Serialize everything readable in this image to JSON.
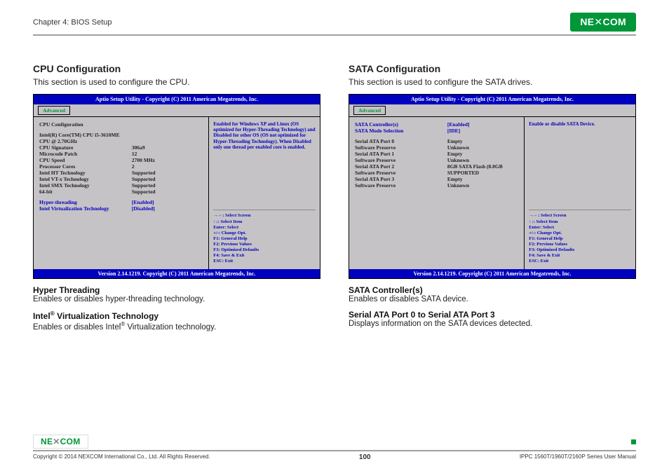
{
  "header": {
    "chapter": "Chapter 4: BIOS Setup",
    "logo": "NE COM"
  },
  "left": {
    "heading": "CPU Configuration",
    "sub": "This section is used to configure the CPU.",
    "bios": {
      "title": "Aptio Setup Utility - Copyright (C) 2011 American Megatrends, Inc.",
      "tab": "Advanced",
      "section": "CPU Configuration",
      "rows": [
        {
          "label": "Intel(R) Core(TM) CPU i5-3610ME CPU @ 2.70GHz",
          "value": ""
        },
        {
          "label": "CPU Signature",
          "value": "306a9"
        },
        {
          "label": "Microcode Patch",
          "value": "12"
        },
        {
          "label": "CPU Speed",
          "value": "2700 MHz"
        },
        {
          "label": "Processor Cores",
          "value": "2"
        },
        {
          "label": "Intel HT Technology",
          "value": "Supported"
        },
        {
          "label": "Intel VT-x Technology",
          "value": "Supported"
        },
        {
          "label": "Intel SMX Technology",
          "value": "Supported"
        },
        {
          "label": "64-bit",
          "value": "Supported"
        }
      ],
      "blue_rows": [
        {
          "label": "Hyper-threading",
          "value": "[Enabled]"
        },
        {
          "label": "Intel Virtualization Technology",
          "value": "[Disabled]"
        }
      ],
      "help": "Enabled for Windows XP and Linux (OS optimized for Hyper-Threading Technology) and Disabled for other OS (OS not optimized for Hyper-Threading Technology). When Disabled only one thread per enabled core is enabled.",
      "nav": [
        "→←: Select Screen",
        "↑↓: Select Item",
        "Enter: Select",
        "+/-: Change Opt.",
        "F1: General Help",
        "F2: Previous Values",
        "F3: Optimized Defaults",
        "F4: Save & Exit",
        "ESC: Exit"
      ],
      "footer": "Version 2.14.1219. Copyright (C) 2011 American Megatrends, Inc."
    },
    "sub1_h": "Hyper Threading",
    "sub1_t": "Enables or disables hyper-threading technology.",
    "sub2_h": "Intel® Virtualization Technology",
    "sub2_t": "Enables or disables Intel® Virtualization technology."
  },
  "right": {
    "heading": "SATA Configuration",
    "sub": "This section is used to configure the SATA drives.",
    "bios": {
      "title": "Aptio Setup Utility - Copyright (C) 2011 American Megatrends, Inc.",
      "tab": "Advanced",
      "blue_rows": [
        {
          "label": "SATA Controller(s)",
          "value": "[Enabled]"
        },
        {
          "label": "SATA Mode Selection",
          "value": "[IDE]"
        }
      ],
      "rows": [
        {
          "label": "Serial ATA Port 0",
          "value": "Empty"
        },
        {
          "label": "  Software Preserve",
          "value": "Unknown"
        },
        {
          "label": "Serial ATA Port 1",
          "value": "Empty"
        },
        {
          "label": "  Software Preserve",
          "value": "Unknown"
        },
        {
          "label": "Serial ATA Port 2",
          "value": "8GB SATA Flash (8.0GB"
        },
        {
          "label": "  Software Preserve",
          "value": "SUPPORTED"
        },
        {
          "label": "Serial ATA Port 3",
          "value": "Empty"
        },
        {
          "label": "  Software Preserve",
          "value": "Unknown"
        }
      ],
      "help": "Enable or disable SATA Device.",
      "nav": [
        "→←: Select Screen",
        "↑↓: Select Item",
        "Enter: Select",
        "+/-: Change Opt.",
        "F1: General Help",
        "F2: Previous Values",
        "F3: Optimized Defaults",
        "F4: Save & Exit",
        "ESC: Exit"
      ],
      "footer": "Version 2.14.1219. Copyright (C) 2011 American Megatrends, Inc."
    },
    "sub1_h": "SATA Controller(s)",
    "sub1_t": "Enables or disables SATA device.",
    "sub2_h": "Serial ATA Port 0 to Serial ATA Port 3",
    "sub2_t": "Displays information on the SATA devices detected."
  },
  "footer": {
    "logo": "NE COM",
    "copyright": "Copyright © 2014 NEXCOM International Co., Ltd. All Rights Reserved.",
    "pagenum": "100",
    "manual": "IPPC 1560T/1960T/2160P Series User Manual"
  }
}
